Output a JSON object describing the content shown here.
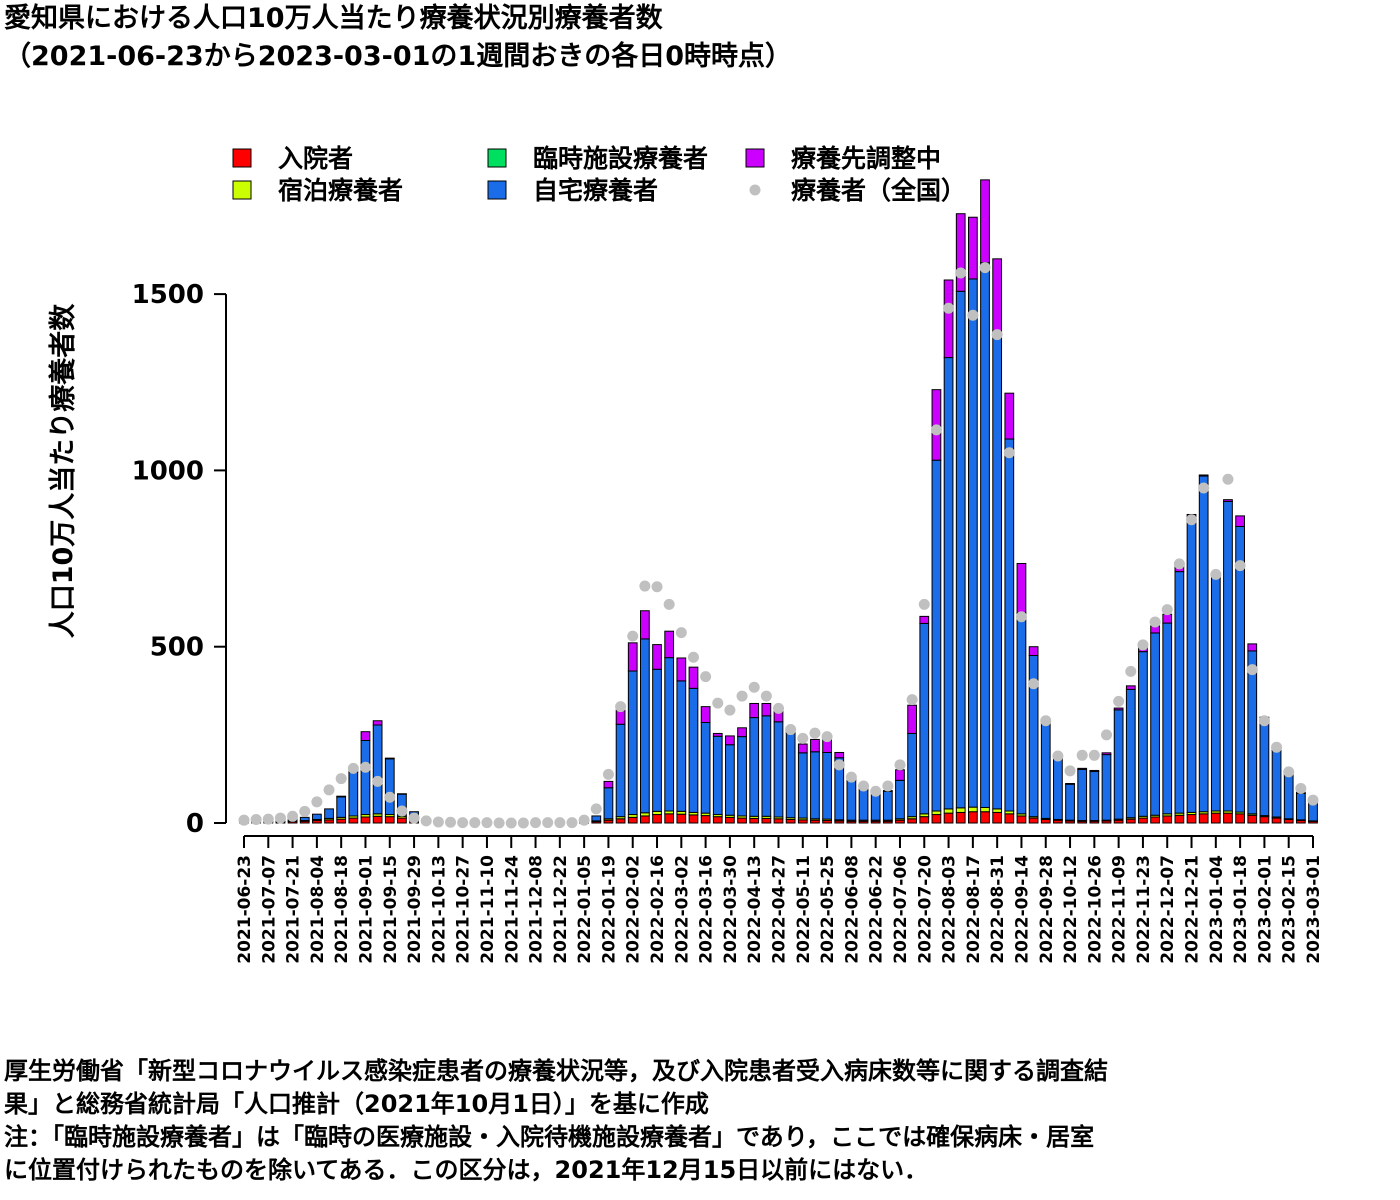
{
  "title": "愛知県における人口10万人当たり療養状況別療養者数",
  "subtitle": "（2021-06-23から2023-03-01の1週間おきの各日0時時点）",
  "notes": [
    "厚生労働省「新型コロナウイルス感染症患者の療養状況等，及び入院患者受入病床数等に関する調査結",
    "果」と総務省統計局「人口推計（2021年10月1日）」を基に作成",
    "注：「臨時施設療養者」は「臨時の医療施設・入院待機施設療養者」であり，ここでは確保病床・居室",
    "に位置付けられたものを除いてある．この区分は，2021年12月15日以前にはない．"
  ],
  "chart_data": {
    "type": "bar",
    "stacked": true,
    "ylabel": "人口10万人当たり療養者数",
    "ylim": [
      0,
      1800
    ],
    "yticks": [
      0,
      500,
      1000,
      1500
    ],
    "x": [
      "2021-06-23",
      "2021-06-30",
      "2021-07-07",
      "2021-07-14",
      "2021-07-21",
      "2021-07-28",
      "2021-08-04",
      "2021-08-11",
      "2021-08-18",
      "2021-08-25",
      "2021-09-01",
      "2021-09-08",
      "2021-09-15",
      "2021-09-22",
      "2021-09-29",
      "2021-10-06",
      "2021-10-13",
      "2021-10-20",
      "2021-10-27",
      "2021-11-03",
      "2021-11-10",
      "2021-11-17",
      "2021-11-24",
      "2021-12-01",
      "2021-12-08",
      "2021-12-15",
      "2021-12-22",
      "2021-12-29",
      "2022-01-05",
      "2022-01-12",
      "2022-01-19",
      "2022-01-26",
      "2022-02-02",
      "2022-02-09",
      "2022-02-16",
      "2022-02-23",
      "2022-03-02",
      "2022-03-09",
      "2022-03-16",
      "2022-03-23",
      "2022-03-30",
      "2022-04-06",
      "2022-04-13",
      "2022-04-20",
      "2022-04-27",
      "2022-05-04",
      "2022-05-11",
      "2022-05-18",
      "2022-05-25",
      "2022-06-01",
      "2022-06-08",
      "2022-06-15",
      "2022-06-22",
      "2022-06-29",
      "2022-07-06",
      "2022-07-13",
      "2022-07-20",
      "2022-07-27",
      "2022-08-03",
      "2022-08-10",
      "2022-08-17",
      "2022-08-24",
      "2022-08-31",
      "2022-09-07",
      "2022-09-14",
      "2022-09-21",
      "2022-09-28",
      "2022-10-05",
      "2022-10-12",
      "2022-10-19",
      "2022-10-26",
      "2022-11-02",
      "2022-11-09",
      "2022-11-16",
      "2022-11-23",
      "2022-11-30",
      "2022-12-07",
      "2022-12-14",
      "2022-12-21",
      "2022-12-28",
      "2023-01-04",
      "2023-01-11",
      "2023-01-18",
      "2023-01-25",
      "2023-02-01",
      "2023-02-08",
      "2023-02-15",
      "2023-02-22",
      "2023-03-01"
    ],
    "xtick_labels": [
      "2021-06-23",
      "2021-07-07",
      "2021-07-21",
      "2021-08-04",
      "2021-08-18",
      "2021-09-01",
      "2021-09-15",
      "2021-09-29",
      "2021-10-13",
      "2021-10-27",
      "2021-11-10",
      "2021-11-24",
      "2021-12-08",
      "2021-12-22",
      "2022-01-05",
      "2022-01-19",
      "2022-02-02",
      "2022-02-16",
      "2022-03-02",
      "2022-03-16",
      "2022-03-30",
      "2022-04-13",
      "2022-04-27",
      "2022-05-11",
      "2022-05-25",
      "2022-06-08",
      "2022-06-22",
      "2022-07-06",
      "2022-07-20",
      "2022-08-03",
      "2022-08-17",
      "2022-08-31",
      "2022-09-14",
      "2022-09-28",
      "2022-10-12",
      "2022-10-26",
      "2022-11-09",
      "2022-11-23",
      "2022-12-07",
      "2022-12-21",
      "2023-01-04",
      "2023-01-18",
      "2023-02-01",
      "2023-02-15",
      "2023-03-01"
    ],
    "series": [
      {
        "name": "入院者",
        "color": "#ff0000",
        "values": [
          3,
          3,
          3,
          3,
          4,
          5,
          7,
          9,
          11,
          14,
          17,
          19,
          18,
          14,
          8,
          4,
          2,
          1,
          1,
          1,
          0,
          0,
          0,
          0,
          0,
          0,
          0,
          0,
          1,
          4,
          8,
          12,
          16,
          20,
          24,
          26,
          25,
          23,
          21,
          18,
          16,
          14,
          13,
          13,
          12,
          10,
          9,
          8,
          7,
          6,
          5,
          5,
          5,
          5,
          8,
          12,
          18,
          24,
          28,
          30,
          32,
          32,
          30,
          26,
          20,
          14,
          10,
          8,
          6,
          5,
          5,
          6,
          8,
          11,
          14,
          17,
          20,
          22,
          24,
          26,
          28,
          28,
          26,
          22,
          18,
          14,
          10,
          7,
          5
        ]
      },
      {
        "name": "宿泊療養者",
        "color": "#ccff00",
        "values": [
          1,
          1,
          1,
          1,
          2,
          2,
          3,
          4,
          5,
          6,
          7,
          7,
          6,
          5,
          3,
          2,
          1,
          1,
          0,
          0,
          0,
          0,
          0,
          0,
          0,
          0,
          0,
          0,
          0,
          2,
          4,
          6,
          8,
          9,
          9,
          8,
          8,
          7,
          7,
          6,
          6,
          6,
          6,
          6,
          5,
          5,
          5,
          4,
          4,
          3,
          3,
          3,
          3,
          3,
          4,
          6,
          8,
          10,
          12,
          13,
          13,
          12,
          10,
          8,
          6,
          4,
          3,
          2,
          2,
          2,
          2,
          2,
          3,
          4,
          5,
          5,
          6,
          6,
          6,
          6,
          6,
          6,
          5,
          4,
          3,
          3,
          2,
          2,
          1
        ]
      },
      {
        "name": "臨時施設療養者",
        "color": "#00e060",
        "values": [
          0,
          0,
          0,
          0,
          0,
          0,
          0,
          0,
          0,
          0,
          0,
          0,
          0,
          0,
          0,
          0,
          0,
          0,
          0,
          0,
          0,
          0,
          0,
          0,
          0,
          0,
          0,
          0,
          0,
          0,
          0,
          0,
          0,
          0,
          0,
          0,
          0,
          0,
          0,
          0,
          0,
          0,
          0,
          0,
          0,
          0,
          0,
          0,
          0,
          0,
          0,
          0,
          0,
          0,
          0,
          0,
          0,
          0,
          0,
          0,
          0,
          0,
          0,
          0,
          0,
          0,
          0,
          0,
          0,
          0,
          0,
          0,
          0,
          0,
          0,
          0,
          0,
          0,
          0,
          0,
          0,
          0,
          0,
          0,
          0,
          0,
          0,
          0,
          0
        ]
      },
      {
        "name": "自宅療養者",
        "color": "#1a6ce8",
        "values": [
          4,
          4,
          4,
          5,
          6,
          9,
          15,
          27,
          58,
          124,
          210,
          252,
          158,
          63,
          21,
          5,
          2,
          1,
          1,
          0,
          0,
          0,
          0,
          0,
          0,
          0,
          0,
          0,
          3,
          14,
          88,
          262,
          407,
          493,
          403,
          435,
          370,
          352,
          257,
          222,
          200,
          225,
          280,
          285,
          270,
          240,
          185,
          190,
          189,
          176,
          115,
          94,
          80,
          82,
          109,
          236,
          540,
          995,
          1280,
          1465,
          1498,
          1545,
          1350,
          1055,
          570,
          457,
          272,
          172,
          102,
          145,
          139,
          186,
          310,
          364,
          467,
          517,
          541,
          685,
          825,
          952,
          670,
          878,
          810,
          462,
          269,
          189,
          127,
          75,
          52
        ]
      },
      {
        "name": "療養先調整中",
        "color": "#cc00ff",
        "values": [
          0,
          0,
          0,
          0,
          0,
          0,
          0,
          0,
          2,
          6,
          25,
          12,
          2,
          1,
          0,
          0,
          0,
          0,
          0,
          0,
          0,
          0,
          0,
          0,
          0,
          0,
          0,
          0,
          0,
          0,
          18,
          40,
          80,
          80,
          70,
          75,
          65,
          60,
          45,
          8,
          25,
          25,
          40,
          35,
          30,
          5,
          25,
          35,
          40,
          15,
          4,
          3,
          2,
          2,
          30,
          80,
          20,
          200,
          220,
          220,
          175,
          235,
          210,
          130,
          140,
          25,
          10,
          5,
          2,
          3,
          3,
          5,
          5,
          10,
          15,
          20,
          25,
          15,
          20,
          3,
          3,
          5,
          30,
          20,
          10,
          5,
          5,
          3,
          2
        ]
      },
      {
        "name": "療養者（全国）",
        "color": "#c0c0c0",
        "type": "scatter",
        "values": [
          8,
          10,
          11,
          14,
          19,
          33,
          60,
          94,
          126,
          155,
          158,
          118,
          73,
          34,
          14,
          6,
          3,
          2,
          1,
          1,
          1,
          0,
          0,
          0,
          1,
          1,
          1,
          1,
          8,
          40,
          138,
          330,
          530,
          672,
          670,
          620,
          540,
          470,
          415,
          340,
          320,
          360,
          385,
          360,
          325,
          265,
          240,
          255,
          245,
          165,
          130,
          105,
          90,
          105,
          165,
          350,
          620,
          1115,
          1460,
          1560,
          1440,
          1575,
          1385,
          1050,
          585,
          395,
          290,
          190,
          148,
          192,
          192,
          250,
          345,
          430,
          505,
          570,
          605,
          735,
          860,
          950,
          705,
          975,
          730,
          435,
          290,
          215,
          145,
          98,
          65
        ]
      }
    ],
    "legend": {
      "position": "top",
      "columns": 3
    },
    "grid": false
  }
}
